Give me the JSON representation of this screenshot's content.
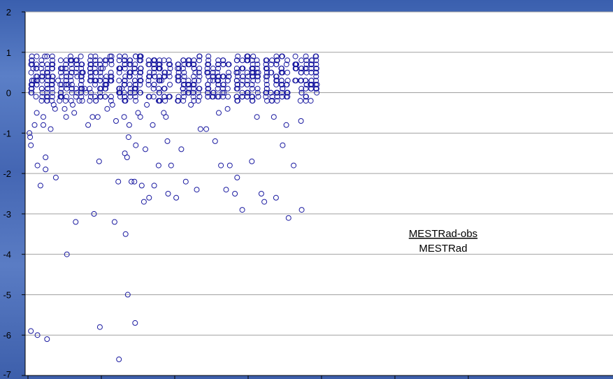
{
  "chart_data": {
    "type": "scatter",
    "title": "",
    "xlabel": "",
    "ylabel": "",
    "ylim": [
      -7,
      2
    ],
    "y_ticks": [
      2,
      1,
      0,
      -1,
      -2,
      -3,
      -4,
      -5,
      -6,
      -7
    ],
    "y_tick_labels": [
      "2",
      "1",
      "0",
      "-1",
      "-2",
      "-3",
      "-4",
      "-5",
      "-6",
      "-7"
    ],
    "x_categories": 6,
    "grid": "horizontal",
    "legend": "none",
    "marker": "open-circle",
    "marker_color": "#1a1aa0",
    "plot_background": "#ffffff",
    "annotation": {
      "numerator": "MESTRad-obs",
      "denominator": "MESTRad"
    },
    "series": [
      {
        "values": [
          [
            0.02,
            -1.0
          ],
          [
            0.03,
            -1.1
          ],
          [
            0.04,
            -1.3
          ],
          [
            0.04,
            -5.9
          ],
          [
            0.07,
            0.6
          ],
          [
            0.08,
            0.3
          ],
          [
            0.09,
            -0.8
          ],
          [
            0.11,
            -0.1
          ],
          [
            0.12,
            -0.5
          ],
          [
            0.13,
            -1.8
          ],
          [
            0.13,
            -6.0
          ],
          [
            0.17,
            -2.3
          ],
          [
            0.2,
            0.5
          ],
          [
            0.21,
            -0.6
          ],
          [
            0.21,
            -0.8
          ],
          [
            0.23,
            0.9
          ],
          [
            0.24,
            -1.6
          ],
          [
            0.24,
            -1.9
          ],
          [
            0.26,
            -6.1
          ],
          [
            0.28,
            0.4
          ],
          [
            0.31,
            -0.9
          ],
          [
            0.33,
            0.1
          ],
          [
            0.35,
            -0.3
          ],
          [
            0.37,
            -0.4
          ],
          [
            0.38,
            -2.1
          ],
          [
            0.41,
            0.3
          ],
          [
            0.43,
            -0.2
          ],
          [
            0.45,
            -0.1
          ],
          [
            0.47,
            0.6
          ],
          [
            0.5,
            -0.4
          ],
          [
            0.52,
            -0.6
          ],
          [
            0.53,
            -4.0
          ],
          [
            0.55,
            0.2
          ],
          [
            0.58,
            0.8
          ],
          [
            0.61,
            -0.3
          ],
          [
            0.63,
            -0.5
          ],
          [
            0.65,
            -3.2
          ],
          [
            0.67,
            0.4
          ],
          [
            0.7,
            -0.2
          ],
          [
            0.72,
            0.9
          ],
          [
            0.75,
            0.5
          ],
          [
            0.77,
            0.1
          ],
          [
            0.79,
            0.0
          ],
          [
            0.82,
            -0.8
          ],
          [
            0.85,
            0.7
          ],
          [
            0.88,
            -0.6
          ],
          [
            0.9,
            -3.0
          ],
          [
            0.92,
            0.3
          ],
          [
            0.95,
            -0.6
          ],
          [
            0.97,
            -1.7
          ],
          [
            0.98,
            -5.8
          ],
          [
            1.02,
            0.6
          ],
          [
            1.05,
            0.2
          ],
          [
            1.08,
            -0.4
          ],
          [
            1.12,
            0.9
          ],
          [
            1.15,
            -0.3
          ],
          [
            1.18,
            -3.2
          ],
          [
            1.2,
            -0.7
          ],
          [
            1.23,
            -2.2
          ],
          [
            1.24,
            -6.6
          ],
          [
            1.28,
            0.1
          ],
          [
            1.31,
            -0.6
          ],
          [
            1.32,
            -1.5
          ],
          [
            1.33,
            -3.5
          ],
          [
            1.35,
            -1.6
          ],
          [
            1.36,
            -5.0
          ],
          [
            1.37,
            -1.1
          ],
          [
            1.38,
            -0.8
          ],
          [
            1.41,
            -2.2
          ],
          [
            1.45,
            -2.2
          ],
          [
            1.46,
            -5.7
          ],
          [
            1.47,
            -1.3
          ],
          [
            1.5,
            -0.5
          ],
          [
            1.53,
            -0.6
          ],
          [
            1.55,
            -2.3
          ],
          [
            1.58,
            -2.7
          ],
          [
            1.6,
            -1.4
          ],
          [
            1.62,
            -0.3
          ],
          [
            1.65,
            -2.6
          ],
          [
            1.7,
            -0.8
          ],
          [
            1.72,
            -2.3
          ],
          [
            1.78,
            -1.8
          ],
          [
            1.82,
            0.3
          ],
          [
            1.85,
            -0.5
          ],
          [
            1.88,
            -0.6
          ],
          [
            1.9,
            -1.2
          ],
          [
            1.91,
            -2.5
          ],
          [
            1.95,
            -1.8
          ],
          [
            2.02,
            -2.6
          ],
          [
            2.05,
            -0.2
          ],
          [
            2.09,
            -1.4
          ],
          [
            2.15,
            -2.2
          ],
          [
            2.18,
            0.2
          ],
          [
            2.22,
            -0.3
          ],
          [
            2.28,
            0.5
          ],
          [
            2.3,
            -2.4
          ],
          [
            2.35,
            -0.9
          ],
          [
            2.43,
            -0.9
          ],
          [
            2.48,
            0.3
          ],
          [
            2.55,
            -1.2
          ],
          [
            2.6,
            -0.5
          ],
          [
            2.63,
            -1.8
          ],
          [
            2.7,
            -2.4
          ],
          [
            2.72,
            -0.4
          ],
          [
            2.75,
            -1.8
          ],
          [
            2.82,
            -2.5
          ],
          [
            2.85,
            -2.1
          ],
          [
            2.92,
            -2.9
          ],
          [
            3.05,
            -1.7
          ],
          [
            3.12,
            -0.6
          ],
          [
            3.18,
            -2.5
          ],
          [
            3.22,
            -2.7
          ],
          [
            3.35,
            -0.6
          ],
          [
            3.38,
            -2.6
          ],
          [
            3.47,
            -1.3
          ],
          [
            3.52,
            -0.8
          ],
          [
            3.55,
            -3.1
          ],
          [
            3.62,
            -1.8
          ],
          [
            3.72,
            -0.7
          ],
          [
            3.73,
            -2.9
          ]
        ]
      }
    ]
  }
}
